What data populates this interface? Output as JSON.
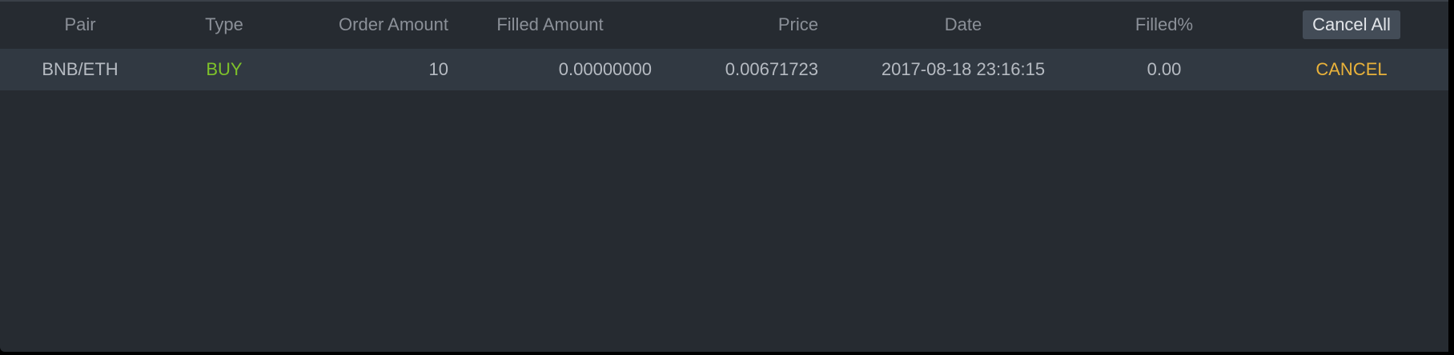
{
  "table": {
    "columns": {
      "pair": "Pair",
      "type": "Type",
      "order_amount": "Order Amount",
      "filled_amount": "Filled Amount",
      "price": "Price",
      "date": "Date",
      "filled_pct": "Filled%"
    },
    "cancel_all_label": "Cancel All",
    "rows": [
      {
        "pair": "BNB/ETH",
        "type": "BUY",
        "order_amount": "10",
        "filled_amount": "0.00000000",
        "price": "0.00671723",
        "date": "2017-08-18 23:16:15",
        "filled_pct": "0.00",
        "action": "CANCEL"
      }
    ]
  },
  "colors": {
    "background": "#262b31",
    "row_highlight": "#313942",
    "buy": "#7ec22a",
    "cancel": "#e9b23a"
  }
}
